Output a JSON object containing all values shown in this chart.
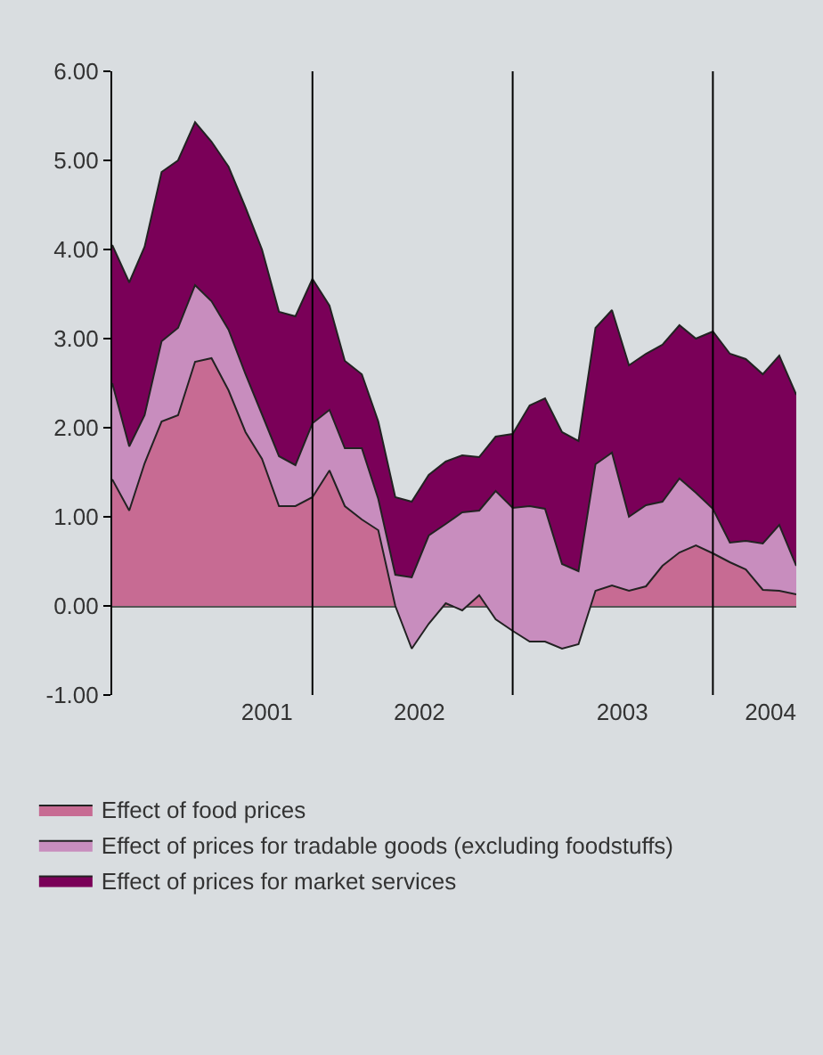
{
  "chart_data": {
    "type": "area",
    "stacked": true,
    "x": [
      "2001-01",
      "2001-02",
      "2001-03",
      "2001-04",
      "2001-05",
      "2001-06",
      "2001-07",
      "2001-08",
      "2001-09",
      "2001-10",
      "2001-11",
      "2001-12",
      "2002-01",
      "2002-02",
      "2002-03",
      "2002-04",
      "2002-05",
      "2002-06",
      "2002-07",
      "2002-08",
      "2002-09",
      "2002-10",
      "2002-11",
      "2002-12",
      "2003-01",
      "2003-02",
      "2003-03",
      "2003-04",
      "2003-05",
      "2003-06",
      "2003-07",
      "2003-08",
      "2003-09",
      "2003-10",
      "2003-11",
      "2003-12",
      "2004-01",
      "2004-02",
      "2004-03",
      "2004-04",
      "2004-05",
      "2004-06"
    ],
    "series": [
      {
        "name": "Effect of food prices",
        "color": "#c76b93",
        "values": [
          1.42,
          1.07,
          1.6,
          2.07,
          2.14,
          2.74,
          2.78,
          2.42,
          1.95,
          1.65,
          1.12,
          1.12,
          1.22,
          1.52,
          1.12,
          0.97,
          0.85,
          0.0,
          -0.48,
          -0.2,
          0.03,
          -0.05,
          0.12,
          -0.15,
          -0.28,
          -0.4,
          -0.4,
          -0.48,
          -0.43,
          0.17,
          0.23,
          0.17,
          0.22,
          0.45,
          0.6,
          0.68,
          0.59,
          0.49,
          0.41,
          0.18,
          0.17,
          0.13
        ]
      },
      {
        "name": "Effect of prices for tradable goods (excluding foodstuffs)",
        "color": "#c88dbe",
        "values": [
          1.08,
          0.72,
          0.54,
          0.9,
          0.98,
          0.86,
          0.64,
          0.68,
          0.65,
          0.5,
          0.56,
          0.46,
          0.83,
          0.68,
          0.65,
          0.8,
          0.35,
          0.35,
          0.8,
          0.99,
          0.89,
          1.1,
          0.95,
          1.44,
          1.38,
          1.52,
          1.49,
          0.95,
          0.82,
          1.42,
          1.49,
          0.83,
          0.91,
          0.72,
          0.83,
          0.59,
          0.5,
          0.22,
          0.32,
          0.52,
          0.74,
          0.32
        ]
      },
      {
        "name": "Effect of prices for market services",
        "color": "#7a0058",
        "values": [
          1.55,
          1.84,
          1.89,
          1.9,
          1.88,
          1.83,
          1.79,
          1.83,
          1.87,
          1.85,
          1.62,
          1.67,
          1.62,
          1.17,
          0.98,
          0.83,
          0.87,
          0.87,
          0.85,
          0.68,
          0.7,
          0.64,
          0.6,
          0.61,
          0.83,
          1.13,
          1.24,
          1.48,
          1.46,
          1.53,
          1.6,
          1.7,
          1.7,
          1.76,
          1.72,
          1.73,
          1.99,
          2.12,
          2.04,
          1.9,
          1.9,
          1.92
        ]
      }
    ],
    "xlim": [
      "2001-01",
      "2004-06"
    ],
    "xticks": [
      {
        "value": "2001-10-10",
        "label": "2001"
      },
      {
        "value": "2002-07-15",
        "label": "2002"
      },
      {
        "value": "2003-07-20",
        "label": "2003"
      },
      {
        "value": "2004-04-15",
        "label": "2004"
      }
    ],
    "ylim": [
      -1,
      6
    ],
    "yticks": [
      {
        "value": -1,
        "label": "-1.00"
      },
      {
        "value": 0,
        "label": "0.00"
      },
      {
        "value": 1,
        "label": "1.00"
      },
      {
        "value": 2,
        "label": "2.00"
      },
      {
        "value": 3,
        "label": "3.00"
      },
      {
        "value": 4,
        "label": "4.00"
      },
      {
        "value": 5,
        "label": "5.00"
      },
      {
        "value": 6,
        "label": "6.00"
      }
    ],
    "ref_lines": [
      {
        "axis": "x",
        "value": "2002-01",
        "color": "#000000"
      },
      {
        "axis": "x",
        "value": "2003-01",
        "color": "#000000"
      },
      {
        "axis": "x",
        "value": "2004-01",
        "color": "#000000"
      }
    ],
    "legend": "bottom"
  }
}
